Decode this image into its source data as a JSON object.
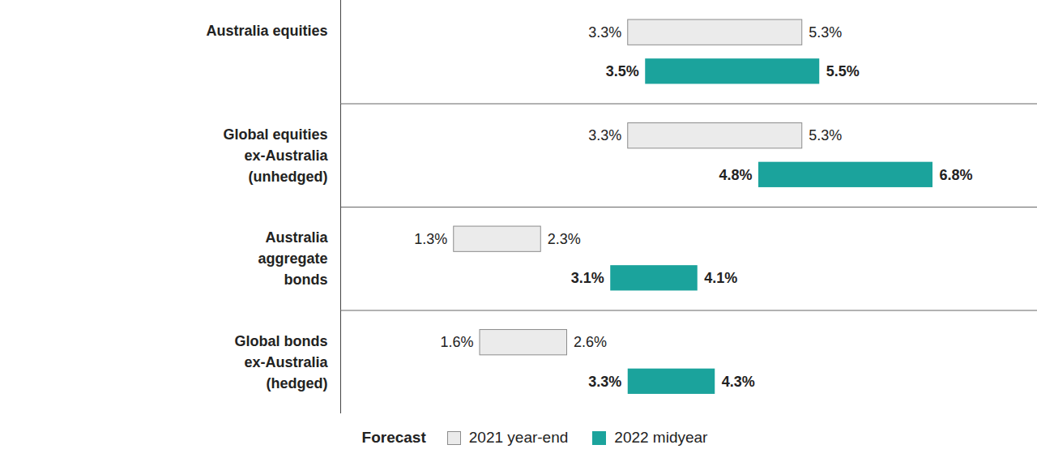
{
  "chart_data": {
    "type": "bar",
    "orientation": "horizontal",
    "categories": [
      "Australia equities",
      "Global equities\nex-Australia\n(unhedged)",
      "Australia\naggregate\nbonds",
      "Global bonds\nex-Australia\n(hedged)"
    ],
    "series": [
      {
        "name": "2021 year-end",
        "color": "#ebebeb",
        "values": [
          [
            3.3,
            5.3
          ],
          [
            3.3,
            5.3
          ],
          [
            1.3,
            2.3
          ],
          [
            1.6,
            2.6
          ]
        ],
        "value_labels": [
          [
            "3.3%",
            "5.3%"
          ],
          [
            "3.3%",
            "5.3%"
          ],
          [
            "1.3%",
            "2.3%"
          ],
          [
            "1.6%",
            "2.6%"
          ]
        ]
      },
      {
        "name": "2022 midyear",
        "color": "#1ba39c",
        "values": [
          [
            3.5,
            5.5
          ],
          [
            4.8,
            6.8
          ],
          [
            3.1,
            4.1
          ],
          [
            3.3,
            4.3
          ]
        ],
        "value_labels": [
          [
            "3.5%",
            "5.5%"
          ],
          [
            "4.8%",
            "6.8%"
          ],
          [
            "3.1%",
            "4.1%"
          ],
          [
            "3.3%",
            "4.3%"
          ]
        ]
      }
    ],
    "xlim": [
      0,
      8
    ],
    "xticks": [],
    "legend": "bottom",
    "legend_title": "Forecast",
    "data_labels": true,
    "tick_labels": "y",
    "stacked": false,
    "grid": false
  }
}
